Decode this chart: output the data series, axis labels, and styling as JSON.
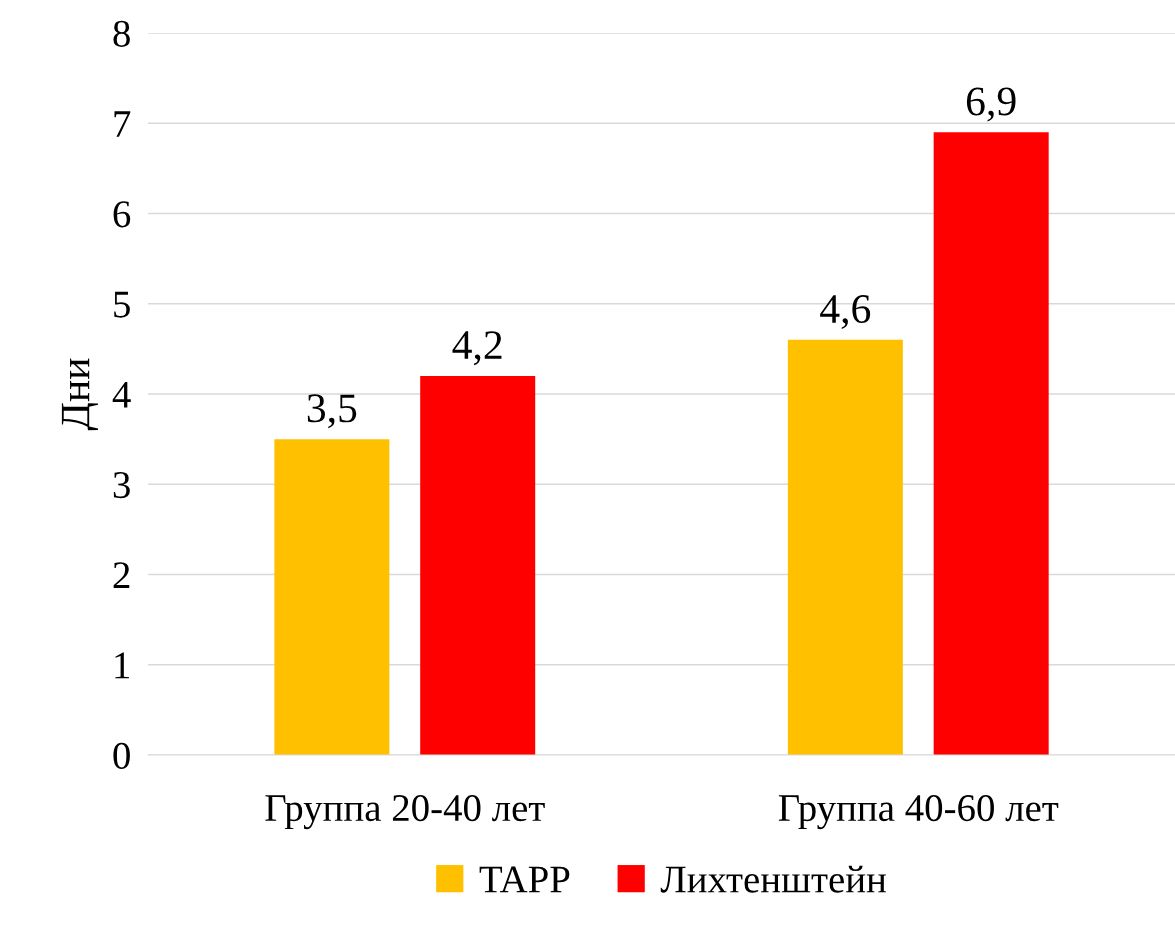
{
  "chart_data": {
    "type": "bar",
    "ylabel": "Дни",
    "categories": [
      "Группа 20-40 лет",
      "Группа 40-60 лет"
    ],
    "series": [
      {
        "name": "TAPP",
        "color": "#ffc000",
        "values": [
          3.5,
          4.6
        ],
        "value_labels": [
          "3,5",
          "4,6"
        ]
      },
      {
        "name": "Лихтенштейн",
        "color": "#ff0000",
        "values": [
          4.2,
          6.9
        ],
        "value_labels": [
          "4,2",
          "6,9"
        ]
      }
    ],
    "ylim": [
      0,
      8
    ],
    "yticks": [
      0,
      1,
      2,
      3,
      4,
      5,
      6,
      7,
      8
    ],
    "grid": "y",
    "legend": "bottom"
  }
}
